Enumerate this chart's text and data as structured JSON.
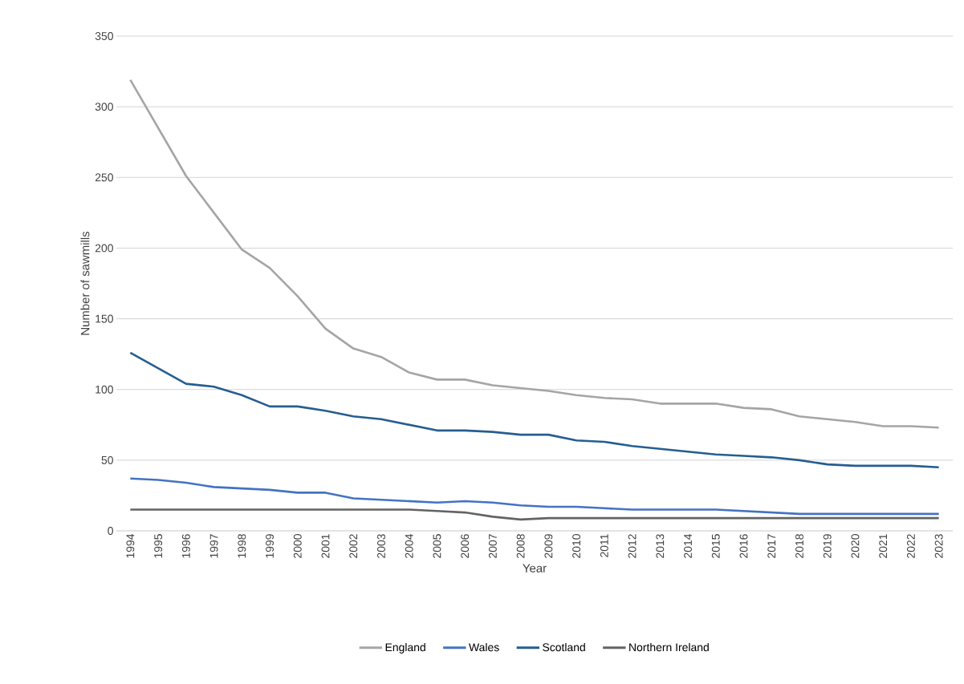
{
  "chart_data": {
    "type": "line",
    "xlabel": "Year",
    "ylabel": "Number of sawmills",
    "categories": [
      "1994",
      "1995",
      "1996",
      "1997",
      "1998",
      "1999",
      "2000",
      "2001",
      "2002",
      "2003",
      "2004",
      "2005",
      "2006",
      "2007",
      "2008",
      "2009",
      "2010",
      "2011",
      "2012",
      "2013",
      "2014",
      "2015",
      "2016",
      "2017",
      "2018",
      "2019",
      "2020",
      "2021",
      "2022",
      "2023"
    ],
    "series": [
      {
        "name": "England",
        "color": "#a5a5a5",
        "values": [
          319,
          285,
          251,
          225,
          199,
          186,
          166,
          143,
          129,
          123,
          112,
          107,
          107,
          103,
          101,
          99,
          96,
          94,
          93,
          90,
          90,
          90,
          87,
          86,
          81,
          79,
          77,
          74,
          74,
          73
        ]
      },
      {
        "name": "Wales",
        "color": "#4472c4",
        "values": [
          37,
          36,
          34,
          31,
          30,
          29,
          27,
          27,
          23,
          22,
          21,
          20,
          21,
          20,
          18,
          17,
          17,
          16,
          15,
          15,
          15,
          15,
          14,
          13,
          12,
          12,
          12,
          12,
          12,
          12
        ]
      },
      {
        "name": "Scotland",
        "color": "#255e91",
        "values": [
          126,
          115,
          104,
          102,
          96,
          88,
          88,
          85,
          81,
          79,
          75,
          71,
          71,
          70,
          68,
          68,
          64,
          63,
          60,
          58,
          56,
          54,
          53,
          52,
          50,
          47,
          46,
          46,
          46,
          45
        ]
      },
      {
        "name": "Northern Ireland",
        "color": "#636363",
        "values": [
          15,
          15,
          15,
          15,
          15,
          15,
          15,
          15,
          15,
          15,
          15,
          14,
          13,
          10,
          8,
          9,
          9,
          9,
          9,
          9,
          9,
          9,
          9,
          9,
          9,
          9,
          9,
          9,
          9,
          9
        ]
      }
    ],
    "ylim": [
      0,
      350
    ],
    "yticks": [
      0,
      50,
      100,
      150,
      200,
      250,
      300,
      350
    ],
    "grid": "y",
    "legend": "bottom",
    "marker": "none",
    "line_style": "solid"
  }
}
